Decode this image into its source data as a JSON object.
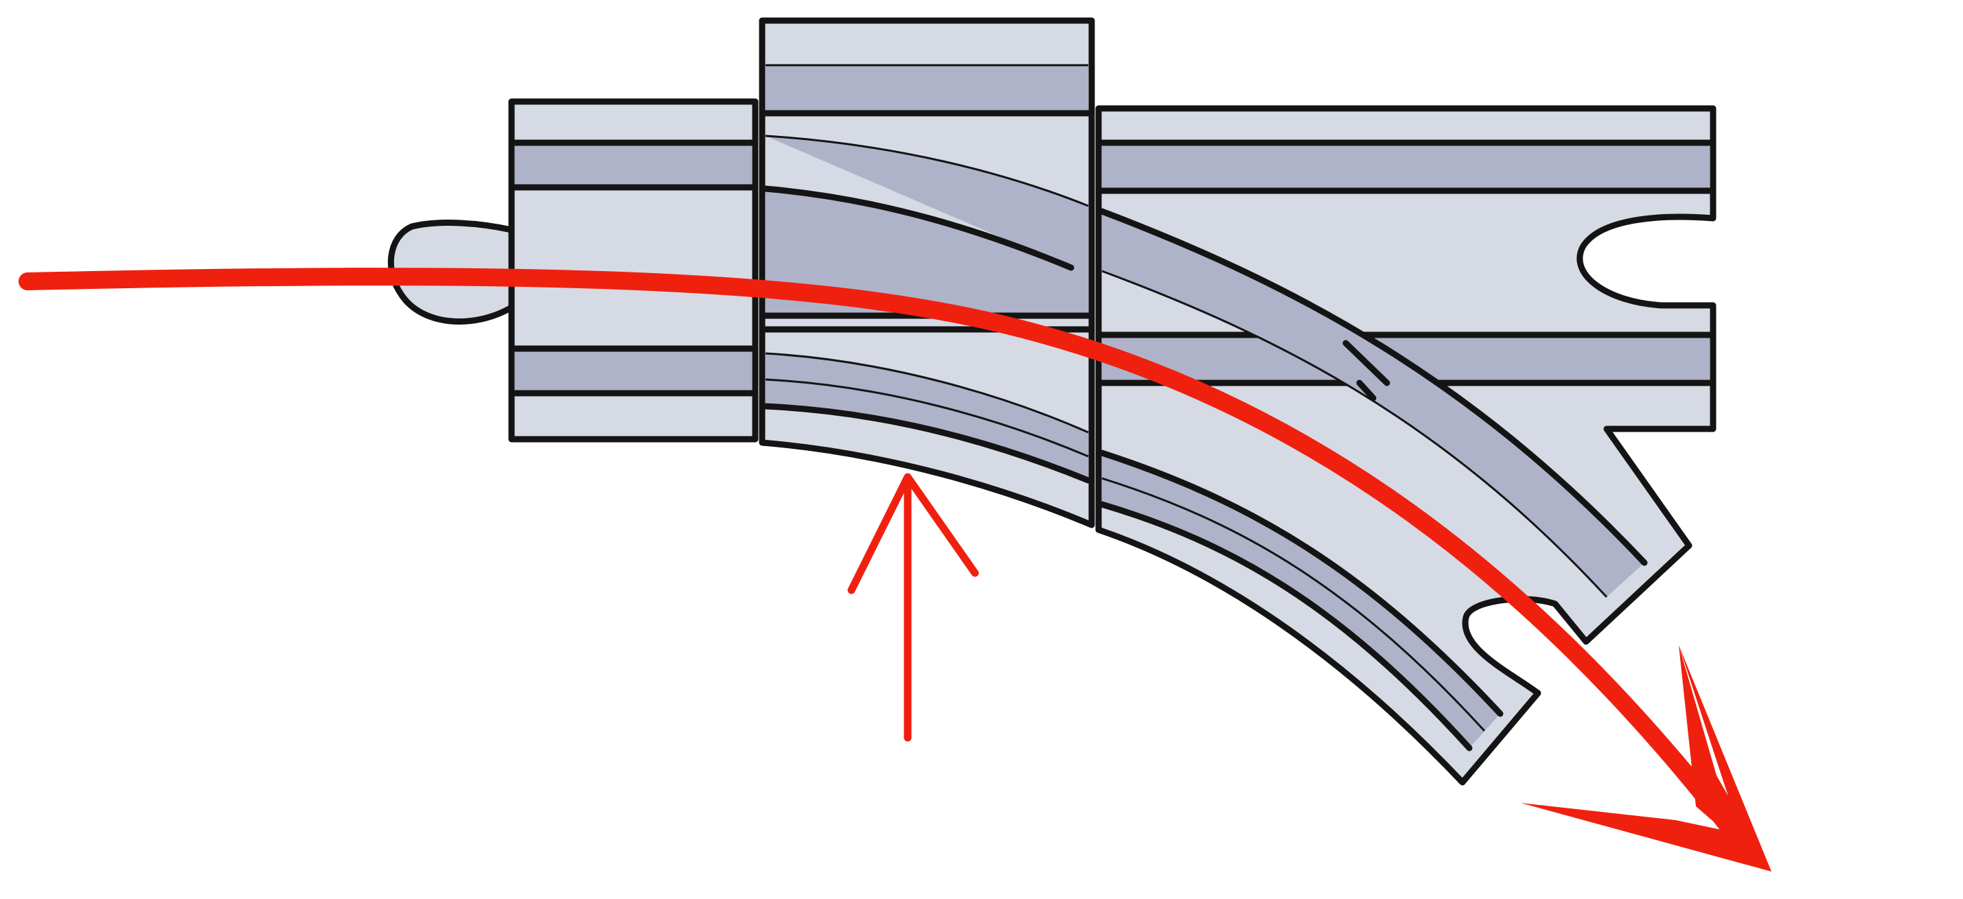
{
  "diagram": {
    "description_labels": [],
    "colors": {
      "piece_body": "#d6dae4",
      "rail_groove": "#afb3c9",
      "outline": "#141414",
      "direction_arrow": "#f0200f",
      "background": "#ffffff"
    },
    "pieces": [
      {
        "name": "straight-track-piece",
        "connector": "male-peg"
      },
      {
        "name": "moving-slider-piece",
        "connector": "none"
      },
      {
        "name": "switch-track-piece",
        "connector": "female-slots"
      }
    ],
    "arrows": [
      {
        "name": "train-direction-arrow",
        "direction": "left-to-right-curving-down"
      },
      {
        "name": "push-direction-arrow",
        "direction": "up"
      }
    ]
  }
}
